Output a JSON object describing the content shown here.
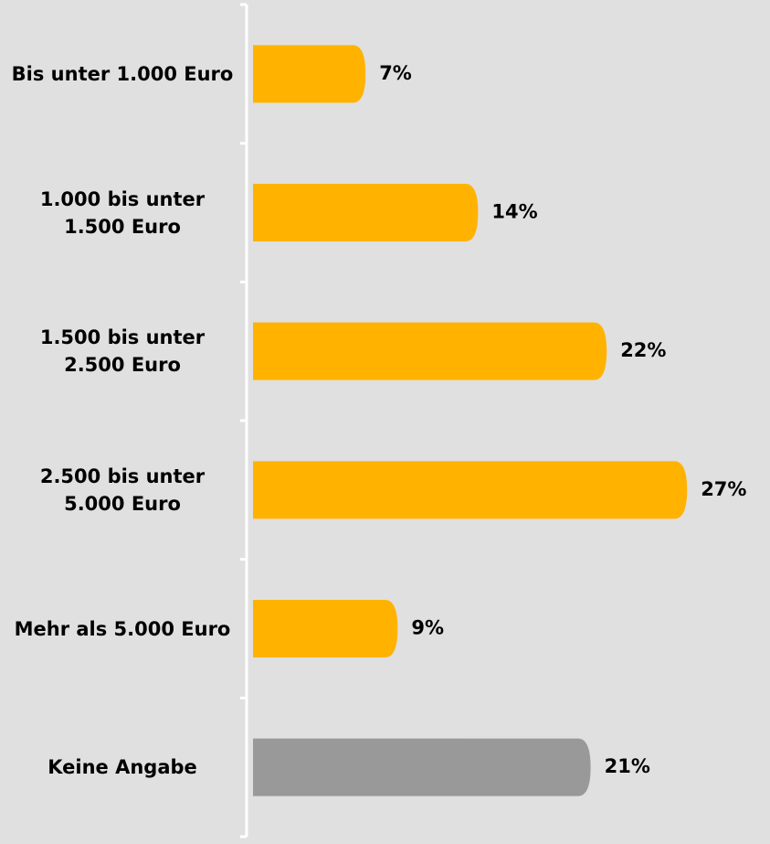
{
  "chart_data": {
    "type": "bar",
    "orientation": "horizontal",
    "categories": [
      "Bis unter 1.000 Euro",
      "1.000 bis unter 1.500 Euro",
      "1.500 bis unter 2.500 Euro",
      "2.500 bis unter 5.000 Euro",
      "Mehr als 5.000 Euro",
      "Keine Angabe"
    ],
    "values": [
      7,
      14,
      22,
      27,
      9,
      21
    ],
    "value_labels": [
      "7%",
      "14%",
      "22%",
      "27%",
      "9%",
      "21%"
    ],
    "colors": [
      "#ffb300",
      "#ffb300",
      "#ffb300",
      "#ffb300",
      "#ffb300",
      "#999999"
    ]
  }
}
